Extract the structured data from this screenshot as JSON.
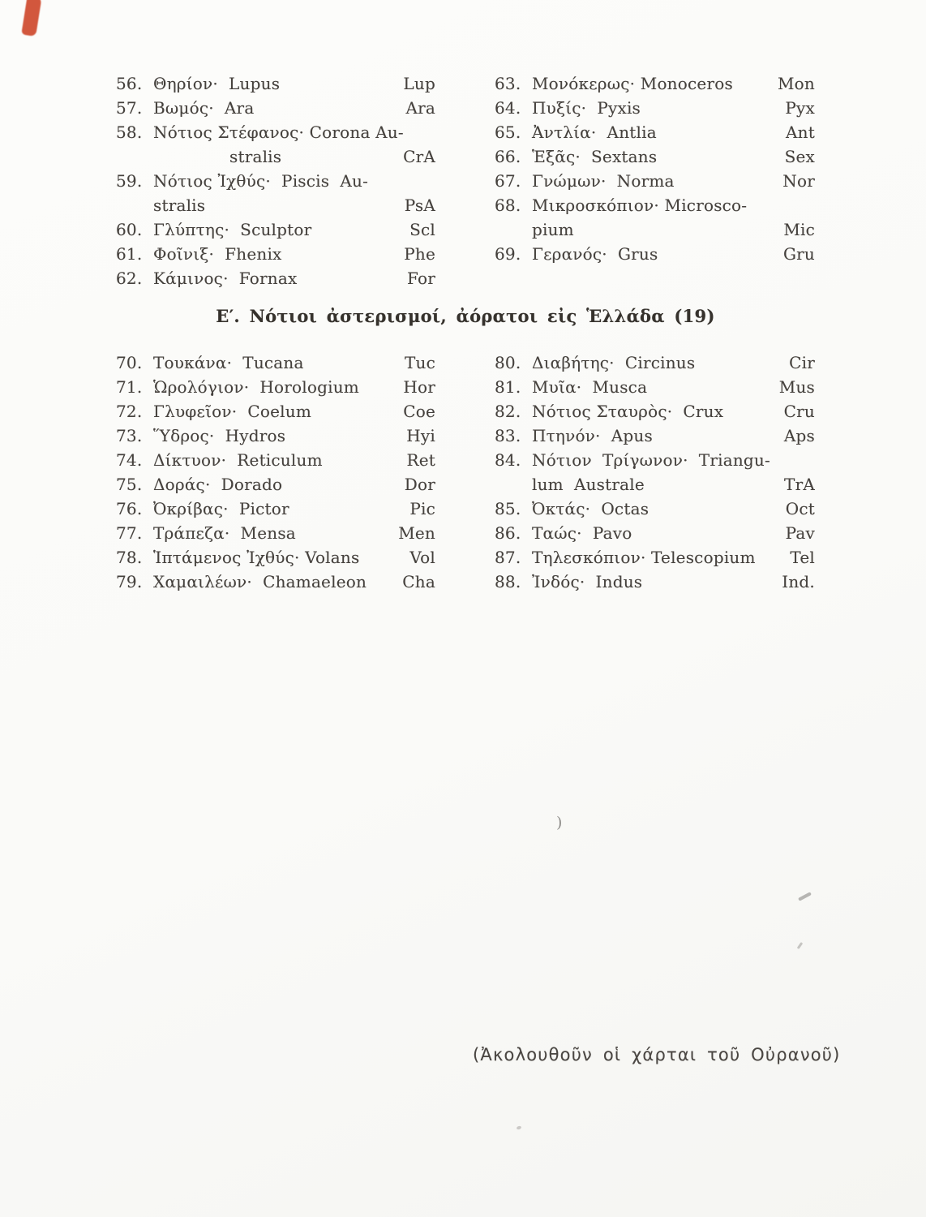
{
  "colors": {
    "paper": "#fafaf8",
    "ink": "#45413d",
    "heading_ink": "#36322d",
    "red_mark": "#cf4a2e",
    "stray": "#8f8d8a"
  },
  "section_heading": "Ε′. Νότιοι ἀστερισμοί, ἀόρατοι εἰς Ἑλλάδα (19)",
  "footer_note": "(Ἀκολουθοῦν οἱ χάρται τοῦ Οὐρανοῦ)",
  "artifacts": {
    "paren": ")"
  },
  "table_top": {
    "left": [
      {
        "num": "56.",
        "name": "Θηρίον·  Lupus",
        "abbr": "Lup"
      },
      {
        "num": "57.",
        "name": "Βωμός·  Ara",
        "abbr": "Ara"
      },
      {
        "num": "58.",
        "name": "Νότιος Στέφανος· Corona Au-",
        "cont": "stralis",
        "indent": "wide",
        "abbr": "CrA"
      },
      {
        "num": "59.",
        "name": "Νότιος Ἰχθύς·  Piscis  Au-",
        "cont": "stralis",
        "indent": "narrow",
        "abbr": "PsA"
      },
      {
        "num": "60.",
        "name": "Γλύπτης·  Sculptor",
        "abbr": "Scl"
      },
      {
        "num": "61.",
        "name": "Φοῖνιξ·  Fhenix",
        "abbr": "Phe"
      },
      {
        "num": "62.",
        "name": "Κάμινος·  Fornax",
        "abbr": "For"
      }
    ],
    "right": [
      {
        "num": "63.",
        "name": "Μονόκερως· Monoceros",
        "abbr": "Mon"
      },
      {
        "num": "64.",
        "name": "Πυξίς·  Pyxis",
        "abbr": "Pyx"
      },
      {
        "num": "65.",
        "name": "Ἀντλία·  Antlia",
        "abbr": "Ant"
      },
      {
        "num": "66.",
        "name": "Ἑξᾶς·  Sextans",
        "abbr": "Sex"
      },
      {
        "num": "67.",
        "name": "Γνώμων·  Norma",
        "abbr": "Nor"
      },
      {
        "num": "68.",
        "name": "Μικροσκόπιον· Microsco-",
        "cont": "pium",
        "indent": "narrow",
        "abbr": "Mic"
      },
      {
        "num": "69.",
        "name": "Γερανός·  Grus",
        "abbr": "Gru"
      }
    ]
  },
  "table_bottom": {
    "left": [
      {
        "num": "70.",
        "name": "Τουκάνα·  Tucana",
        "abbr": "Tuc"
      },
      {
        "num": "71.",
        "name": "Ὡρολόγιον·  Horologium",
        "abbr": "Hor"
      },
      {
        "num": "72.",
        "name": "Γλυφεῖον·  Coelum",
        "abbr": "Coe"
      },
      {
        "num": "73.",
        "name": "Ὕδρος·  Hydros",
        "abbr": "Hyi"
      },
      {
        "num": "74.",
        "name": "Δίκτυον·  Reticulum",
        "abbr": "Ret"
      },
      {
        "num": "75.",
        "name": "Δοράς·  Dorado",
        "abbr": "Dor"
      },
      {
        "num": "76.",
        "name": "Ὀκρίβας·  Pictor",
        "abbr": "Pic"
      },
      {
        "num": "77.",
        "name": "Τράπεζα·  Mensa",
        "abbr": "Men"
      },
      {
        "num": "78.",
        "name": "Ἱπτάμενος Ἰχθύς· Volans",
        "abbr": "Vol"
      },
      {
        "num": "79.",
        "name": "Χαμαιλέων·  Chamaeleon",
        "abbr": "Cha"
      }
    ],
    "right": [
      {
        "num": "80.",
        "name": "Διαβήτης·  Circinus",
        "abbr": "Cir"
      },
      {
        "num": "81.",
        "name": "Μυῖα·  Musca",
        "abbr": "Mus"
      },
      {
        "num": "82.",
        "name": "Νότιος Σταυρὸς·  Crux",
        "abbr": "Cru"
      },
      {
        "num": "83.",
        "name": "Πτηνόν·  Apus",
        "abbr": "Aps"
      },
      {
        "num": "84.",
        "name": "Νότιον  Τρίγωνον·  Triangu-",
        "cont": "lum  Australe",
        "indent": "narrow",
        "abbr": "TrA"
      },
      {
        "num": "85.",
        "name": "Ὀκτάς·  Octas",
        "abbr": "Oct"
      },
      {
        "num": "86.",
        "name": "Ταώς·  Pavo",
        "abbr": "Pav"
      },
      {
        "num": "87.",
        "name": "Τηλεσκόπιον· Telescopium",
        "abbr": "Tel"
      },
      {
        "num": "88.",
        "name": "Ἰνδός·  Indus",
        "abbr": "Ind."
      }
    ]
  }
}
